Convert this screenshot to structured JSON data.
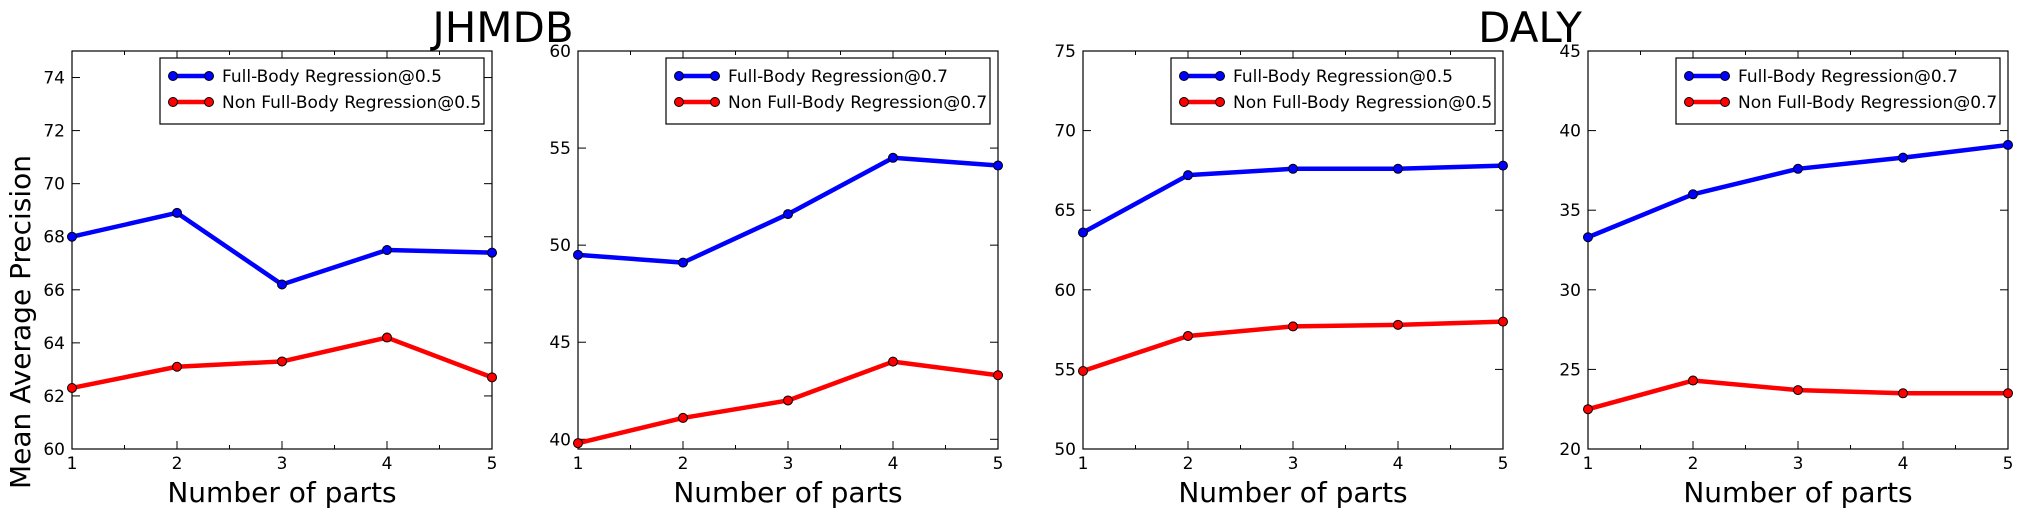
{
  "figure": {
    "group_titles": [
      "JHMDB",
      "DALY"
    ],
    "ylabel": "Mean Average Precision"
  },
  "chart_data": [
    {
      "type": "line",
      "group": "JHMDB",
      "xlabel": "Number of parts",
      "ylabel": "Mean Average Precision",
      "x": [
        1,
        2,
        3,
        4,
        5
      ],
      "xlim": [
        1,
        5
      ],
      "ylim": [
        60,
        75
      ],
      "yticks": [
        60,
        62,
        64,
        66,
        68,
        70,
        72,
        74
      ],
      "legend": "top-right",
      "grid": false,
      "series": [
        {
          "name": "Full-Body Regression@0.5",
          "color": "#0000ff",
          "values": [
            68.0,
            68.9,
            66.2,
            67.5,
            67.4
          ]
        },
        {
          "name": "Non Full-Body Regression@0.5",
          "color": "#ff0000",
          "values": [
            62.3,
            63.1,
            63.3,
            64.2,
            62.7
          ]
        }
      ]
    },
    {
      "type": "line",
      "group": "JHMDB",
      "xlabel": "Number of parts",
      "x": [
        1,
        2,
        3,
        4,
        5
      ],
      "xlim": [
        1,
        5
      ],
      "ylim": [
        39.5,
        60
      ],
      "yticks": [
        40,
        45,
        50,
        55,
        60
      ],
      "legend": "top-right",
      "grid": false,
      "series": [
        {
          "name": "Full-Body Regression@0.7",
          "color": "#0000ff",
          "values": [
            49.5,
            49.1,
            51.6,
            54.5,
            54.1
          ]
        },
        {
          "name": "Non Full-Body Regression@0.7",
          "color": "#ff0000",
          "values": [
            39.8,
            41.1,
            42.0,
            44.0,
            43.3
          ]
        }
      ]
    },
    {
      "type": "line",
      "group": "DALY",
      "xlabel": "Number of parts",
      "x": [
        1,
        2,
        3,
        4,
        5
      ],
      "xlim": [
        1,
        5
      ],
      "ylim": [
        50,
        75
      ],
      "yticks": [
        50,
        55,
        60,
        65,
        70,
        75
      ],
      "legend": "top-right",
      "grid": false,
      "series": [
        {
          "name": "Full-Body Regression@0.5",
          "color": "#0000ff",
          "values": [
            63.6,
            67.2,
            67.6,
            67.6,
            67.8
          ]
        },
        {
          "name": "Non Full-Body Regression@0.5",
          "color": "#ff0000",
          "values": [
            54.9,
            57.1,
            57.7,
            57.8,
            58.0
          ]
        }
      ]
    },
    {
      "type": "line",
      "group": "DALY",
      "xlabel": "Number of parts",
      "x": [
        1,
        2,
        3,
        4,
        5
      ],
      "xlim": [
        1,
        5
      ],
      "ylim": [
        20,
        45
      ],
      "yticks": [
        20,
        25,
        30,
        35,
        40,
        45
      ],
      "legend": "top-right",
      "grid": false,
      "series": [
        {
          "name": "Full-Body Regression@0.7",
          "color": "#0000ff",
          "values": [
            33.3,
            36.0,
            37.6,
            38.3,
            39.1
          ]
        },
        {
          "name": "Non Full-Body Regression@0.7",
          "color": "#ff0000",
          "values": [
            22.5,
            24.3,
            23.7,
            23.5,
            23.5
          ]
        }
      ]
    }
  ]
}
